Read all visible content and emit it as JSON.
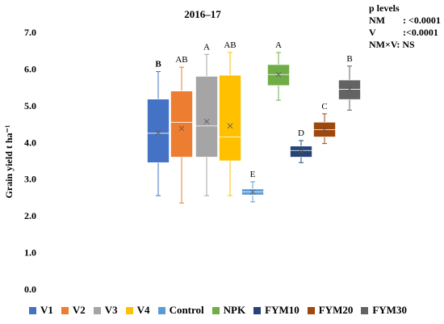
{
  "chart_data": {
    "type": "box",
    "title": "2016–17",
    "ylabel": "Grain yield t ha⁻¹",
    "ylim": [
      0,
      7
    ],
    "yticks": [
      "0.0",
      "1.0",
      "2.0",
      "3.0",
      "4.0",
      "5.0",
      "6.0",
      "7.0"
    ],
    "p_levels": {
      "heading": "p levels",
      "rows": [
        {
          "key": "NM",
          "value": ": <0.0001"
        },
        {
          "key": "V",
          "value": ":<0.0001"
        },
        {
          "key": "NM×V",
          "value": "NM×V: NS"
        }
      ]
    },
    "series": [
      {
        "name": "V1",
        "color": "#4472C4",
        "min": 2.55,
        "q1": 3.45,
        "median": 4.25,
        "q3": 5.18,
        "max": 5.93,
        "mean": 4.27,
        "letter": "B"
      },
      {
        "name": "V2",
        "color": "#ED7D31",
        "min": 2.35,
        "q1": 3.6,
        "median": 4.55,
        "q3": 5.4,
        "max": 6.05,
        "mean": 4.38,
        "letter": "AB"
      },
      {
        "name": "V3",
        "color": "#A5A5A5",
        "min": 2.55,
        "q1": 3.6,
        "median": 4.45,
        "q3": 5.8,
        "max": 6.4,
        "mean": 4.57,
        "letter": "A"
      },
      {
        "name": "V4",
        "color": "#FFC000",
        "min": 2.55,
        "q1": 3.5,
        "median": 4.15,
        "q3": 5.83,
        "max": 6.45,
        "mean": 4.45,
        "letter": "AB"
      },
      {
        "name": "Control",
        "color": "#5B9BD5",
        "min": 2.38,
        "q1": 2.57,
        "median": 2.65,
        "q3": 2.73,
        "max": 2.93,
        "mean": 2.65,
        "letter": "E"
      },
      {
        "name": "NPK",
        "color": "#70AD47",
        "min": 5.15,
        "q1": 5.55,
        "median": 5.85,
        "q3": 6.12,
        "max": 6.45,
        "mean": 5.85,
        "letter": "A"
      },
      {
        "name": "FYM10",
        "color": "#264478",
        "min": 3.45,
        "q1": 3.6,
        "median": 3.78,
        "q3": 3.9,
        "max": 4.05,
        "mean": 3.75,
        "letter": "D"
      },
      {
        "name": "FYM20",
        "color": "#9E480E",
        "min": 3.97,
        "q1": 4.15,
        "median": 4.35,
        "q3": 4.55,
        "max": 4.78,
        "mean": 4.35,
        "letter": "C"
      },
      {
        "name": "FYM30",
        "color": "#636363",
        "min": 4.88,
        "q1": 5.17,
        "median": 5.45,
        "q3": 5.7,
        "max": 6.08,
        "mean": 5.45,
        "letter": "B"
      }
    ]
  }
}
